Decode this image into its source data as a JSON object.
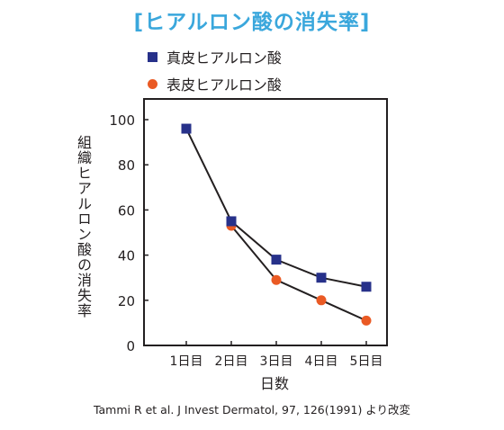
{
  "chart_data": {
    "type": "line",
    "title": "[ヒアルロン酸の消失率]",
    "xlabel": "日数",
    "ylabel": "組織ヒアルロン酸の消失率",
    "categories": [
      "1日目",
      "2日目",
      "3日目",
      "4日目",
      "5日目"
    ],
    "series": [
      {
        "name": "真皮ヒアルロン酸",
        "marker": "square",
        "color": "#27318a",
        "values": [
          96,
          55,
          38,
          30,
          26
        ]
      },
      {
        "name": "表皮ヒアルロン酸",
        "marker": "circle",
        "color": "#ea5a24",
        "values": [
          null,
          53,
          29,
          20,
          11
        ]
      }
    ],
    "ylim": [
      0,
      100
    ],
    "yticks": [
      0,
      20,
      40,
      60,
      80,
      100
    ],
    "grid": false,
    "legend_position": "top-left"
  },
  "source_note": "Tammi R et al. J Invest Dermatol, 97, 126(1991) より改変"
}
